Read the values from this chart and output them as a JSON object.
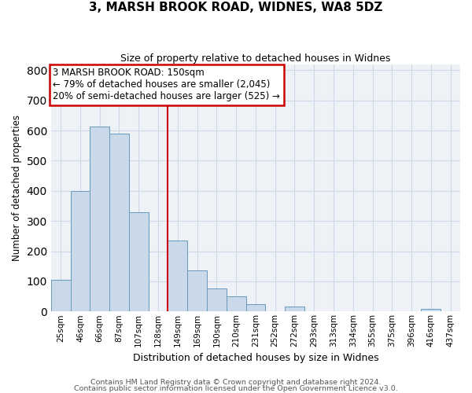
{
  "title": "3, MARSH BROOK ROAD, WIDNES, WA8 5DZ",
  "subtitle": "Size of property relative to detached houses in Widnes",
  "xlabel": "Distribution of detached houses by size in Widnes",
  "ylabel": "Number of detached properties",
  "bin_labels": [
    "25sqm",
    "46sqm",
    "66sqm",
    "87sqm",
    "107sqm",
    "128sqm",
    "149sqm",
    "169sqm",
    "190sqm",
    "210sqm",
    "231sqm",
    "252sqm",
    "272sqm",
    "293sqm",
    "313sqm",
    "334sqm",
    "355sqm",
    "375sqm",
    "396sqm",
    "416sqm",
    "437sqm"
  ],
  "bar_heights": [
    105,
    400,
    614,
    590,
    330,
    0,
    235,
    135,
    76,
    50,
    25,
    0,
    17,
    0,
    0,
    0,
    0,
    0,
    0,
    8,
    0
  ],
  "bar_color": "#c9d9ea",
  "bar_edge_color": "#6699bb",
  "vline_x_index": 6,
  "vline_color": "#cc0000",
  "ylim": [
    0,
    820
  ],
  "yticks": [
    0,
    100,
    200,
    300,
    400,
    500,
    600,
    700,
    800
  ],
  "annotation_title": "3 MARSH BROOK ROAD: 150sqm",
  "annotation_line1": "← 79% of detached houses are smaller (2,045)",
  "annotation_line2": "20% of semi-detached houses are larger (525) →",
  "annotation_box_color": "#cc0000",
  "footer_line1": "Contains HM Land Registry data © Crown copyright and database right 2024.",
  "footer_line2": "Contains public sector information licensed under the Open Government Licence v3.0.",
  "plot_bg_color": "#eef2f7",
  "fig_bg_color": "#ffffff",
  "grid_color": "#ccd9e8",
  "title_fontsize": 11,
  "subtitle_fontsize": 9,
  "ylabel_fontsize": 8.5,
  "xlabel_fontsize": 9,
  "tick_fontsize": 7.5,
  "annot_fontsize": 8.5,
  "footer_fontsize": 6.8
}
